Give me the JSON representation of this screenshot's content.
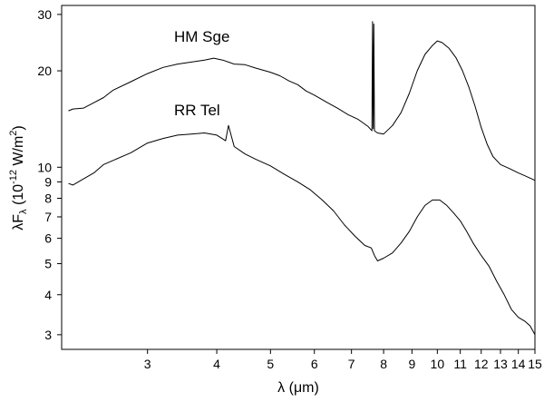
{
  "chart_data": {
    "type": "line",
    "title": "",
    "xscale": "log",
    "yscale": "log",
    "xlim": [
      2.1,
      15
    ],
    "ylim": [
      2.7,
      32
    ],
    "xlabel_parts": {
      "main": "λ (",
      "mu": "μ",
      "unit": "m)"
    },
    "ylabel_parts": {
      "lambda": "λ",
      "f": "F",
      "sub": "λ",
      "pre": " (10",
      "exp": "-12",
      "unit": " W/m",
      "sup2": "2",
      "close": ")"
    },
    "x_ticks": [
      {
        "value": 3,
        "label": "3"
      },
      {
        "value": 4,
        "label": "4"
      },
      {
        "value": 5,
        "label": "5"
      },
      {
        "value": 6,
        "label": "6"
      },
      {
        "value": 7,
        "label": "7"
      },
      {
        "value": 8,
        "label": "8"
      },
      {
        "value": 9,
        "label": "9"
      },
      {
        "value": 10,
        "label": "10"
      },
      {
        "value": 11,
        "label": "11"
      },
      {
        "value": 12,
        "label": "12"
      },
      {
        "value": 13,
        "label": "13"
      },
      {
        "value": 14,
        "label": "14"
      },
      {
        "value": 15,
        "label": "15"
      }
    ],
    "y_ticks": [
      {
        "value": 3,
        "label": "3"
      },
      {
        "value": 4,
        "label": "4"
      },
      {
        "value": 5,
        "label": "5"
      },
      {
        "value": 6,
        "label": "6"
      },
      {
        "value": 7,
        "label": "7"
      },
      {
        "value": 8,
        "label": "8"
      },
      {
        "value": 9,
        "label": "9"
      },
      {
        "value": 10,
        "label": "10"
      },
      {
        "value": 20,
        "label": "20"
      },
      {
        "value": 30,
        "label": "30"
      }
    ],
    "series": [
      {
        "name": "HM Sge",
        "x": [
          2.16,
          2.2,
          2.3,
          2.4,
          2.5,
          2.6,
          2.8,
          3.0,
          3.2,
          3.4,
          3.6,
          3.8,
          3.95,
          4.1,
          4.3,
          4.5,
          4.7,
          5.0,
          5.2,
          5.4,
          5.6,
          5.8,
          6.0,
          6.3,
          6.6,
          6.9,
          7.2,
          7.5,
          7.62,
          7.64,
          7.66,
          7.68,
          7.7,
          7.8,
          8.0,
          8.3,
          8.6,
          8.9,
          9.2,
          9.5,
          9.8,
          10.0,
          10.2,
          10.5,
          10.8,
          11.1,
          11.4,
          11.7,
          12.0,
          12.3,
          12.6,
          13.0,
          13.5,
          14.0,
          14.4,
          14.6,
          14.8,
          15.0
        ],
        "y": [
          15.0,
          15.2,
          15.3,
          15.9,
          16.5,
          17.4,
          18.5,
          19.6,
          20.5,
          21.0,
          21.3,
          21.6,
          21.9,
          21.6,
          21.0,
          20.9,
          20.4,
          19.8,
          19.3,
          18.6,
          18.1,
          17.3,
          16.8,
          16.0,
          15.3,
          14.6,
          14.1,
          13.4,
          13.0,
          28.5,
          13.2,
          28.0,
          13.0,
          12.8,
          12.7,
          13.5,
          14.8,
          17.0,
          20.0,
          22.5,
          24.0,
          24.8,
          24.5,
          23.5,
          22.0,
          20.0,
          17.8,
          15.5,
          13.3,
          11.8,
          10.8,
          10.2,
          9.9,
          9.6,
          9.4,
          9.3,
          9.2,
          9.1
        ]
      },
      {
        "name": "RR Tel",
        "x": [
          2.16,
          2.2,
          2.3,
          2.4,
          2.5,
          2.6,
          2.8,
          3.0,
          3.2,
          3.4,
          3.6,
          3.8,
          4.0,
          4.15,
          4.2,
          4.3,
          4.5,
          4.7,
          5.0,
          5.3,
          5.6,
          5.9,
          6.2,
          6.5,
          6.8,
          7.1,
          7.4,
          7.6,
          7.7,
          7.8,
          8.0,
          8.3,
          8.6,
          8.9,
          9.2,
          9.5,
          9.8,
          10.1,
          10.4,
          10.7,
          11.0,
          11.3,
          11.6,
          12.0,
          12.4,
          12.8,
          13.2,
          13.6,
          14.0,
          14.4,
          14.7,
          15.0
        ],
        "y": [
          8.9,
          8.8,
          9.2,
          9.6,
          10.2,
          10.5,
          11.1,
          11.9,
          12.3,
          12.6,
          12.7,
          12.8,
          12.6,
          12.1,
          13.5,
          11.6,
          11.0,
          10.6,
          10.1,
          9.5,
          9.0,
          8.5,
          7.9,
          7.3,
          6.6,
          6.1,
          5.7,
          5.6,
          5.3,
          5.1,
          5.2,
          5.4,
          5.8,
          6.3,
          7.0,
          7.6,
          7.9,
          7.9,
          7.6,
          7.2,
          6.8,
          6.3,
          5.8,
          5.3,
          4.9,
          4.4,
          4.0,
          3.6,
          3.4,
          3.3,
          3.2,
          3.0
        ]
      }
    ]
  }
}
